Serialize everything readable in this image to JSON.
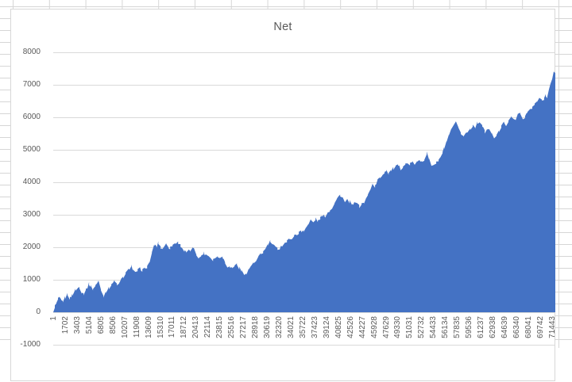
{
  "chart_data": {
    "type": "area",
    "title": "Net",
    "legend": "none",
    "grid": true,
    "x_max": 71920,
    "x_tick_labels": [
      "1",
      "1702",
      "3403",
      "5104",
      "6805",
      "8506",
      "10207",
      "11908",
      "13609",
      "15310",
      "17011",
      "18712",
      "20413",
      "22114",
      "23815",
      "25516",
      "27217",
      "28918",
      "30619",
      "32320",
      "34021",
      "35722",
      "37423",
      "39124",
      "40825",
      "42526",
      "44227",
      "45928",
      "47629",
      "49330",
      "51031",
      "52732",
      "54433",
      "56134",
      "57835",
      "59536",
      "61237",
      "62938",
      "64639",
      "66340",
      "68041",
      "69742",
      "71443"
    ],
    "y_ticks": [
      8000,
      7000,
      6000,
      5000,
      4000,
      3000,
      2000,
      1000,
      0,
      -1000
    ],
    "ylim": [
      -1000,
      8000
    ],
    "series": [
      {
        "name": "Net",
        "points": [
          [
            1,
            0
          ],
          [
            230,
            180
          ],
          [
            460,
            260
          ],
          [
            680,
            390
          ],
          [
            910,
            430
          ],
          [
            1140,
            350
          ],
          [
            1370,
            330
          ],
          [
            1710,
            450
          ],
          [
            2050,
            560
          ],
          [
            2390,
            430
          ],
          [
            2740,
            550
          ],
          [
            3190,
            690
          ],
          [
            3530,
            740
          ],
          [
            3760,
            780
          ],
          [
            4100,
            620
          ],
          [
            4330,
            570
          ],
          [
            4670,
            700
          ],
          [
            5130,
            880
          ],
          [
            5360,
            800
          ],
          [
            5700,
            710
          ],
          [
            6040,
            830
          ],
          [
            6500,
            950
          ],
          [
            6840,
            700
          ],
          [
            7180,
            500
          ],
          [
            7520,
            640
          ],
          [
            7980,
            740
          ],
          [
            8320,
            870
          ],
          [
            8780,
            950
          ],
          [
            9120,
            860
          ],
          [
            9350,
            840
          ],
          [
            9690,
            980
          ],
          [
            10030,
            1080
          ],
          [
            10370,
            1180
          ],
          [
            10710,
            1290
          ],
          [
            11170,
            1450
          ],
          [
            11400,
            1300
          ],
          [
            11740,
            1200
          ],
          [
            12080,
            1280
          ],
          [
            12420,
            1340
          ],
          [
            12770,
            1300
          ],
          [
            13110,
            1330
          ],
          [
            13450,
            1400
          ],
          [
            13790,
            1550
          ],
          [
            14130,
            1800
          ],
          [
            14470,
            2080
          ],
          [
            14820,
            2010
          ],
          [
            15050,
            2140
          ],
          [
            15390,
            2000
          ],
          [
            15620,
            1950
          ],
          [
            15960,
            2060
          ],
          [
            16190,
            2100
          ],
          [
            16530,
            2010
          ],
          [
            16750,
            1980
          ],
          [
            17090,
            2070
          ],
          [
            17320,
            2110
          ],
          [
            17660,
            2140
          ],
          [
            17890,
            2150
          ],
          [
            18230,
            2060
          ],
          [
            18460,
            1990
          ],
          [
            18800,
            1870
          ],
          [
            19030,
            1840
          ],
          [
            19370,
            1880
          ],
          [
            19600,
            1900
          ],
          [
            19940,
            1950
          ],
          [
            20170,
            1990
          ],
          [
            20510,
            1800
          ],
          [
            20850,
            1640
          ],
          [
            21190,
            1740
          ],
          [
            21530,
            1830
          ],
          [
            21880,
            1780
          ],
          [
            22220,
            1750
          ],
          [
            22560,
            1680
          ],
          [
            22900,
            1620
          ],
          [
            23240,
            1690
          ],
          [
            23580,
            1700
          ],
          [
            23920,
            1720
          ],
          [
            24260,
            1690
          ],
          [
            24610,
            1550
          ],
          [
            24950,
            1420
          ],
          [
            25290,
            1390
          ],
          [
            25630,
            1360
          ],
          [
            25970,
            1440
          ],
          [
            26310,
            1480
          ],
          [
            26650,
            1360
          ],
          [
            26990,
            1260
          ],
          [
            27340,
            1200
          ],
          [
            27680,
            1170
          ],
          [
            28020,
            1320
          ],
          [
            28360,
            1450
          ],
          [
            28700,
            1500
          ],
          [
            29040,
            1560
          ],
          [
            29380,
            1680
          ],
          [
            29720,
            1780
          ],
          [
            30070,
            1850
          ],
          [
            30410,
            1950
          ],
          [
            30750,
            2080
          ],
          [
            31090,
            2180
          ],
          [
            31430,
            2080
          ],
          [
            31770,
            2000
          ],
          [
            32110,
            1950
          ],
          [
            32450,
            1980
          ],
          [
            32800,
            2060
          ],
          [
            33140,
            2130
          ],
          [
            33480,
            2180
          ],
          [
            33820,
            2230
          ],
          [
            34160,
            2290
          ],
          [
            34500,
            2340
          ],
          [
            34840,
            2400
          ],
          [
            35180,
            2450
          ],
          [
            35520,
            2480
          ],
          [
            35870,
            2520
          ],
          [
            36210,
            2620
          ],
          [
            36550,
            2700
          ],
          [
            36890,
            2840
          ],
          [
            37230,
            2760
          ],
          [
            37570,
            2870
          ],
          [
            37910,
            2800
          ],
          [
            38250,
            2900
          ],
          [
            38590,
            2950
          ],
          [
            38940,
            2960
          ],
          [
            39280,
            3060
          ],
          [
            39620,
            3140
          ],
          [
            39960,
            3230
          ],
          [
            40300,
            3380
          ],
          [
            40640,
            3490
          ],
          [
            41100,
            3610
          ],
          [
            41440,
            3530
          ],
          [
            41780,
            3370
          ],
          [
            42120,
            3440
          ],
          [
            42460,
            3400
          ],
          [
            42800,
            3290
          ],
          [
            43150,
            3360
          ],
          [
            43490,
            3410
          ],
          [
            43830,
            3250
          ],
          [
            44170,
            3330
          ],
          [
            44510,
            3370
          ],
          [
            44850,
            3500
          ],
          [
            45080,
            3600
          ],
          [
            45420,
            3800
          ],
          [
            45760,
            3950
          ],
          [
            46100,
            3870
          ],
          [
            46450,
            4050
          ],
          [
            46790,
            4150
          ],
          [
            47130,
            4230
          ],
          [
            47470,
            4320
          ],
          [
            47700,
            4380
          ],
          [
            48040,
            4280
          ],
          [
            48380,
            4360
          ],
          [
            48720,
            4420
          ],
          [
            49060,
            4470
          ],
          [
            49400,
            4500
          ],
          [
            49750,
            4420
          ],
          [
            50090,
            4500
          ],
          [
            50430,
            4550
          ],
          [
            50770,
            4570
          ],
          [
            51110,
            4560
          ],
          [
            51450,
            4600
          ],
          [
            51790,
            4560
          ],
          [
            52130,
            4620
          ],
          [
            52470,
            4650
          ],
          [
            52820,
            4680
          ],
          [
            53160,
            4710
          ],
          [
            53500,
            4900
          ],
          [
            53840,
            4700
          ],
          [
            54180,
            4520
          ],
          [
            54520,
            4560
          ],
          [
            54860,
            4590
          ],
          [
            55200,
            4680
          ],
          [
            55430,
            4750
          ],
          [
            55770,
            4900
          ],
          [
            56000,
            5050
          ],
          [
            56340,
            5250
          ],
          [
            56680,
            5420
          ],
          [
            57020,
            5600
          ],
          [
            57360,
            5750
          ],
          [
            57700,
            5830
          ],
          [
            58040,
            5640
          ],
          [
            58380,
            5520
          ],
          [
            58730,
            5420
          ],
          [
            59070,
            5500
          ],
          [
            59410,
            5560
          ],
          [
            59750,
            5650
          ],
          [
            60090,
            5760
          ],
          [
            60430,
            5700
          ],
          [
            60770,
            5820
          ],
          [
            61110,
            5880
          ],
          [
            61450,
            5750
          ],
          [
            61800,
            5550
          ],
          [
            62140,
            5600
          ],
          [
            62480,
            5650
          ],
          [
            62820,
            5470
          ],
          [
            63160,
            5390
          ],
          [
            63500,
            5420
          ],
          [
            63840,
            5560
          ],
          [
            64180,
            5700
          ],
          [
            64520,
            5900
          ],
          [
            64870,
            5760
          ],
          [
            65210,
            5850
          ],
          [
            65550,
            6030
          ],
          [
            65890,
            5920
          ],
          [
            66230,
            5960
          ],
          [
            66570,
            6070
          ],
          [
            66910,
            6120
          ],
          [
            67250,
            5950
          ],
          [
            67590,
            6030
          ],
          [
            67940,
            6150
          ],
          [
            68280,
            6240
          ],
          [
            68620,
            6280
          ],
          [
            68960,
            6390
          ],
          [
            69300,
            6480
          ],
          [
            69640,
            6600
          ],
          [
            69980,
            6500
          ],
          [
            70320,
            6580
          ],
          [
            70550,
            6700
          ],
          [
            70780,
            6640
          ],
          [
            71010,
            6840
          ],
          [
            71240,
            7000
          ],
          [
            71470,
            7200
          ],
          [
            71690,
            7400
          ],
          [
            71920,
            7360
          ]
        ]
      }
    ],
    "colors": {
      "fill": "#4472C4",
      "plot_gridline": "#D9D9D9",
      "axis_text": "#595959",
      "title_text": "#595959",
      "sheet_gridline": "#D6D6D6",
      "chart_border": "#D7D7D7"
    }
  }
}
